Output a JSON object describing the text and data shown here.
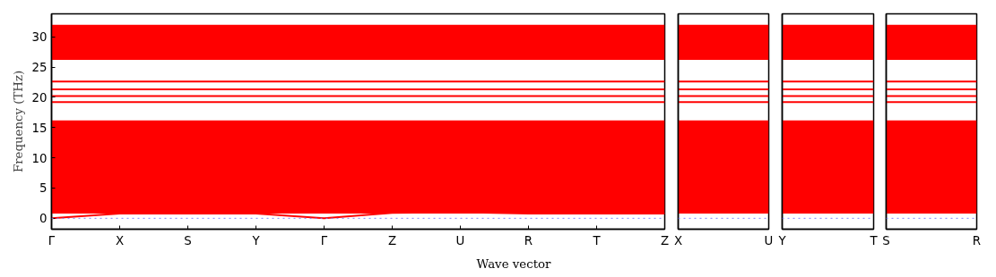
{
  "chart_data": [
    {
      "type": "line",
      "ylabel": "Frequency (THz)",
      "xlabel": "Wave vector",
      "categories": [
        "Γ",
        "X",
        "S",
        "Y",
        "Γ",
        "Z",
        "U",
        "R",
        "T",
        "Z"
      ],
      "ylim": [
        -1.8,
        33.8
      ],
      "yticks": [
        0,
        5,
        10,
        15,
        20,
        25,
        30
      ],
      "line_style": "solid",
      "ref_lines": [
        {
          "axis": "y",
          "value": 0,
          "color": "#8080ff",
          "line_style": "dotted"
        }
      ],
      "bands": [
        {
          "axis": "y",
          "from": 0.8,
          "to": 16.2,
          "color": "#ff0000"
        },
        {
          "axis": "y",
          "from": 26.2,
          "to": 32,
          "color": "#ff0000"
        }
      ],
      "series": [
        {
          "color": "#ff0000",
          "values": [
            0,
            0.8,
            0.8,
            0.8,
            0,
            0.9,
            1,
            0.8,
            0.8,
            0.8
          ]
        },
        {
          "color": "#ff0000",
          "values": [
            19.2,
            19.2,
            19.2,
            19.2,
            19.2,
            19.2,
            19.2,
            19.2,
            19.2,
            19.2
          ]
        },
        {
          "color": "#ff0000",
          "values": [
            20.2,
            20.2,
            20.2,
            20.2,
            20.2,
            20.2,
            20.2,
            20.2,
            20.2,
            20.2
          ]
        },
        {
          "color": "#ff0000",
          "values": [
            21.3,
            21.3,
            21.3,
            21.3,
            21.3,
            21.3,
            21.3,
            21.3,
            21.3,
            21.3
          ]
        },
        {
          "color": "#ff0000",
          "values": [
            22.6,
            22.6,
            22.6,
            22.6,
            22.6,
            22.6,
            22.6,
            22.6,
            22.6,
            22.6
          ]
        }
      ]
    },
    {
      "type": "line",
      "tick_labels": "x",
      "categories": [
        "X",
        "U"
      ],
      "ylim": [
        -1.8,
        33.8
      ],
      "line_style": "solid",
      "ref_lines": [
        {
          "axis": "y",
          "value": 0,
          "color": "#8080ff",
          "line_style": "dotted"
        }
      ],
      "bands": [
        {
          "axis": "y",
          "from": 0.8,
          "to": 16.2,
          "color": "#ff0000"
        },
        {
          "axis": "y",
          "from": 26.2,
          "to": 32,
          "color": "#ff0000"
        }
      ],
      "series": [
        {
          "color": "#ff0000",
          "values": [
            19.2,
            19.2
          ]
        },
        {
          "color": "#ff0000",
          "values": [
            20.2,
            20.2
          ]
        },
        {
          "color": "#ff0000",
          "values": [
            21.3,
            21.3
          ]
        },
        {
          "color": "#ff0000",
          "values": [
            22.6,
            22.6
          ]
        }
      ]
    },
    {
      "type": "line",
      "tick_labels": "x",
      "categories": [
        "Y",
        "T"
      ],
      "ylim": [
        -1.8,
        33.8
      ],
      "line_style": "solid",
      "ref_lines": [
        {
          "axis": "y",
          "value": 0,
          "color": "#8080ff",
          "line_style": "dotted"
        }
      ],
      "bands": [
        {
          "axis": "y",
          "from": 0.8,
          "to": 16.2,
          "color": "#ff0000"
        },
        {
          "axis": "y",
          "from": 26.2,
          "to": 32,
          "color": "#ff0000"
        }
      ],
      "series": [
        {
          "color": "#ff0000",
          "values": [
            19.2,
            19.2
          ]
        },
        {
          "color": "#ff0000",
          "values": [
            20.2,
            20.2
          ]
        },
        {
          "color": "#ff0000",
          "values": [
            21.3,
            21.3
          ]
        },
        {
          "color": "#ff0000",
          "values": [
            22.6,
            22.6
          ]
        }
      ]
    },
    {
      "type": "line",
      "tick_labels": "x",
      "categories": [
        "S",
        "R"
      ],
      "ylim": [
        -1.8,
        33.8
      ],
      "line_style": "solid",
      "ref_lines": [
        {
          "axis": "y",
          "value": 0,
          "color": "#8080ff",
          "line_style": "dotted"
        }
      ],
      "bands": [
        {
          "axis": "y",
          "from": 0.8,
          "to": 16.2,
          "color": "#ff0000"
        },
        {
          "axis": "y",
          "from": 26.2,
          "to": 32,
          "color": "#ff0000"
        }
      ],
      "series": [
        {
          "color": "#ff0000",
          "values": [
            19.2,
            19.2
          ]
        },
        {
          "color": "#ff0000",
          "values": [
            20.2,
            20.2
          ]
        },
        {
          "color": "#ff0000",
          "values": [
            21.3,
            21.3
          ]
        },
        {
          "color": "#ff0000",
          "values": [
            22.6,
            22.6
          ]
        }
      ]
    }
  ]
}
